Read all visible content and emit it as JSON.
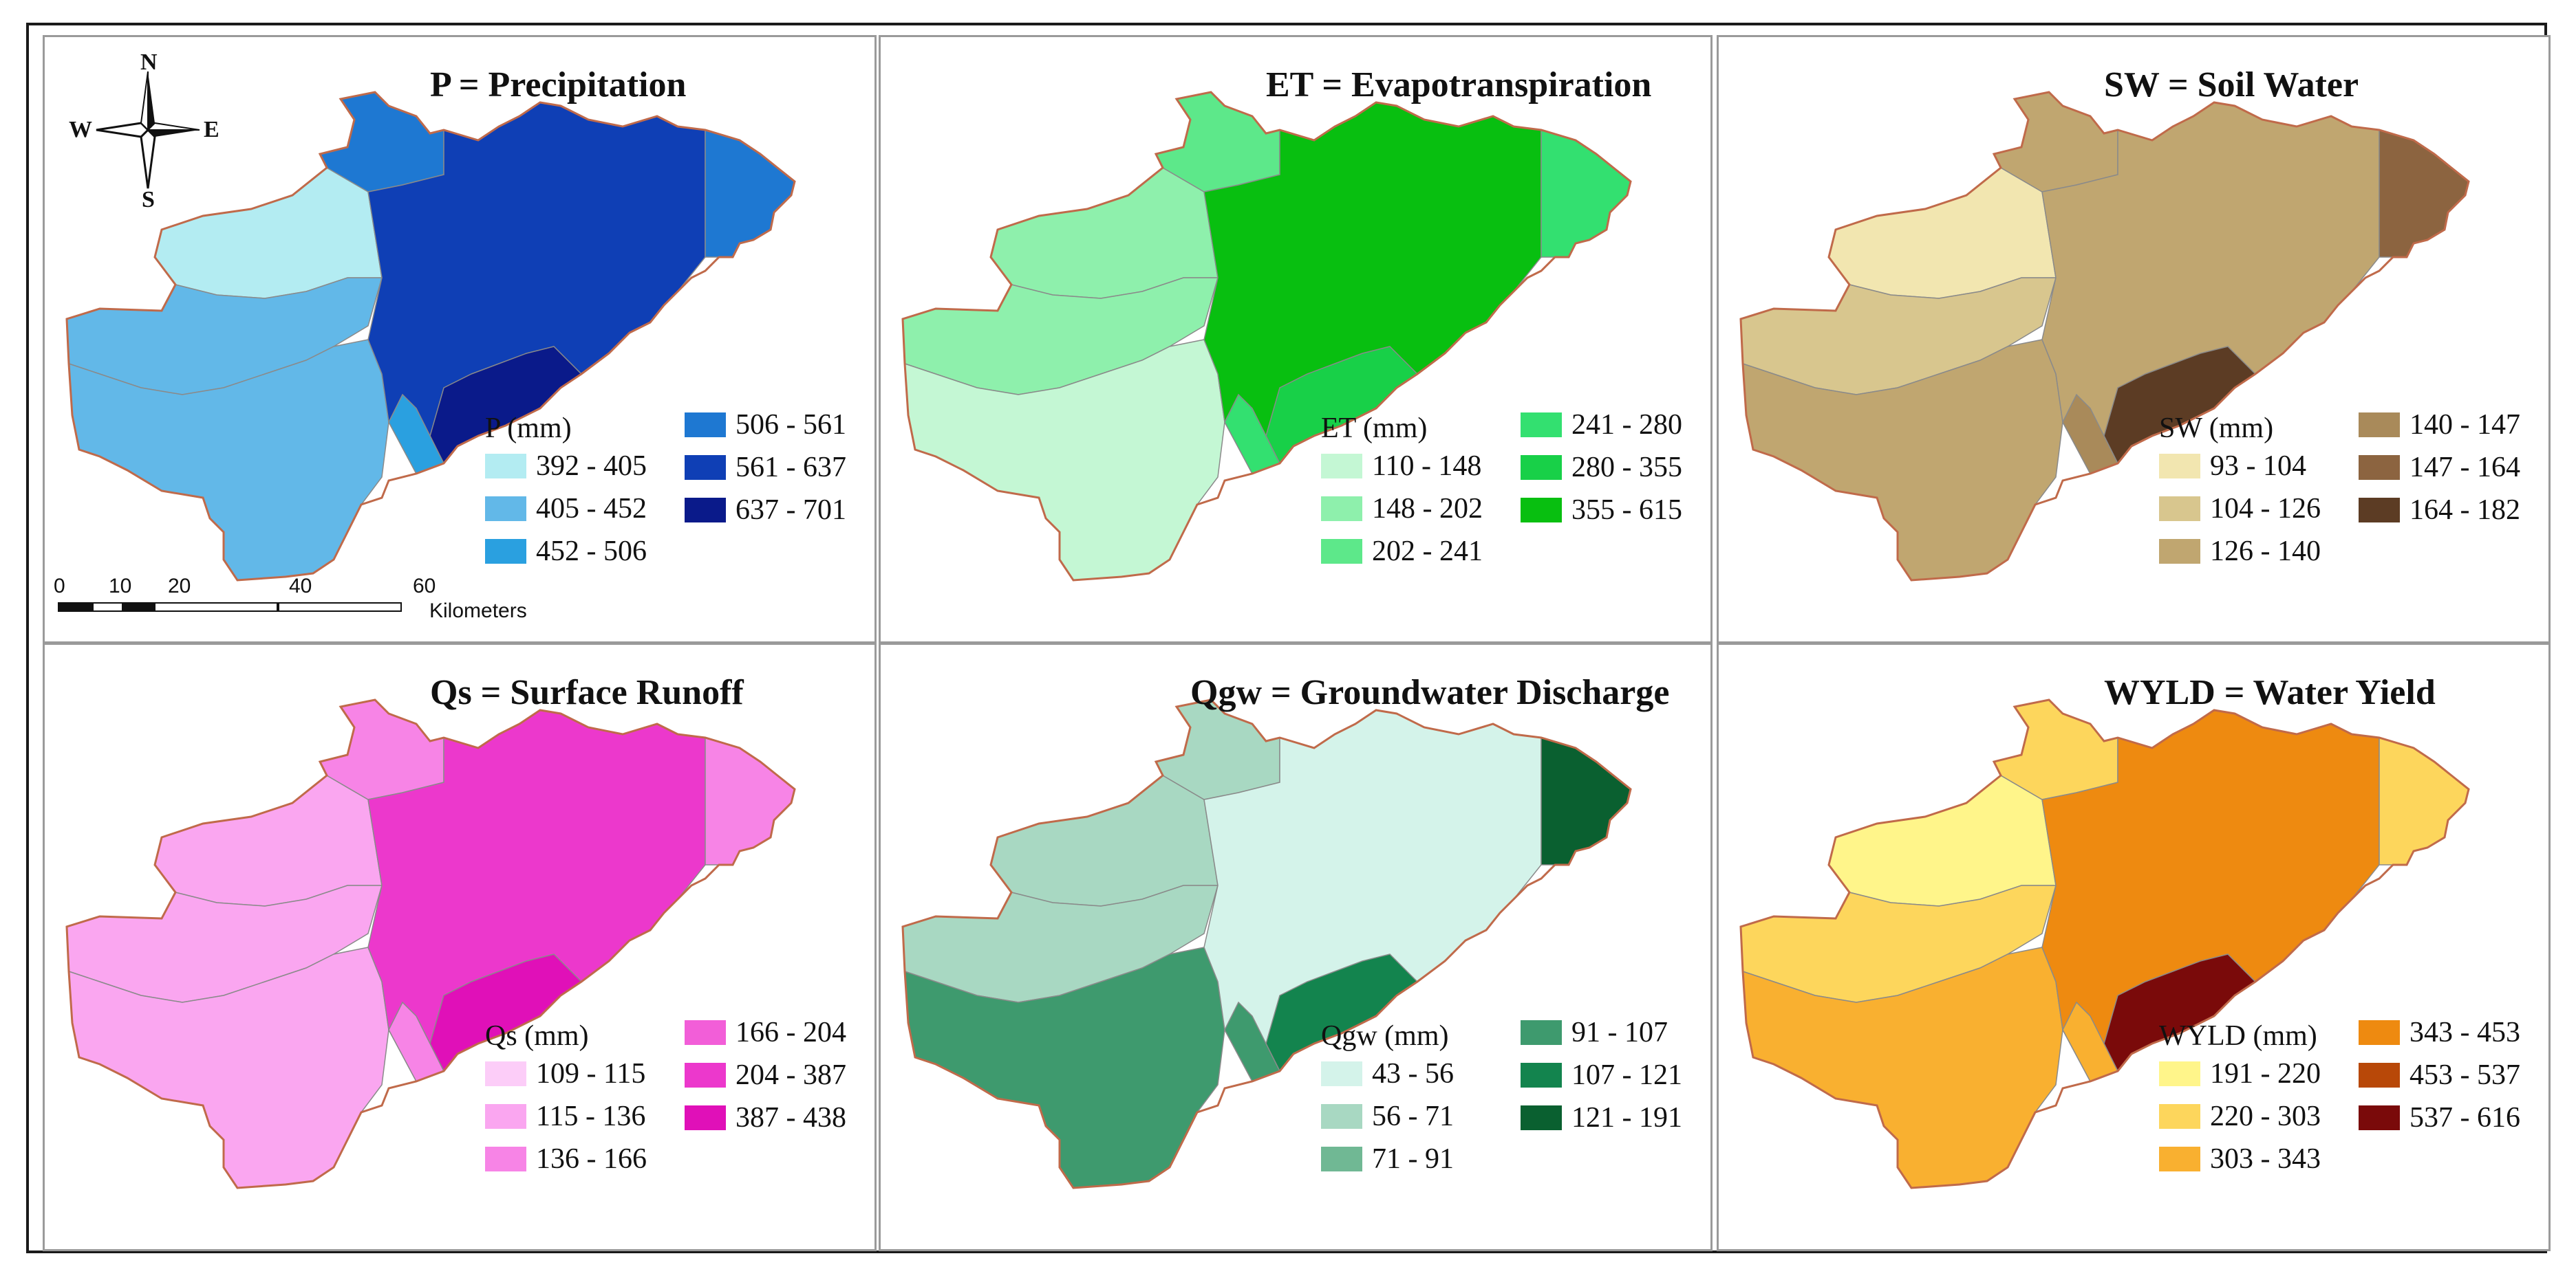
{
  "compass": {
    "n": "N",
    "s": "S",
    "e": "E",
    "w": "W"
  },
  "scale": {
    "ticks": [
      "0",
      "10",
      "20",
      "40",
      "60"
    ],
    "unit": "Kilometers"
  },
  "panels": [
    {
      "title": "P = Precipitation",
      "legend_title": "P (mm)",
      "classes": [
        {
          "label": "392 - 405",
          "color": "#b3ecf2"
        },
        {
          "label": "405 - 452",
          "color": "#62b8e8"
        },
        {
          "label": "452 - 506",
          "color": "#2aa0e0"
        },
        {
          "label": "506 - 561",
          "color": "#1e78d2"
        },
        {
          "label": "561 - 637",
          "color": "#0f3fb5"
        },
        {
          "label": "637 - 701",
          "color": "#0a1a8a"
        }
      ]
    },
    {
      "title": "ET = Evapotranspiration",
      "legend_title": "ET (mm)",
      "classes": [
        {
          "label": "110 - 148",
          "color": "#c4f7d4"
        },
        {
          "label": "148 - 202",
          "color": "#8ef0ac"
        },
        {
          "label": "202 - 241",
          "color": "#5de88a"
        },
        {
          "label": "241 - 280",
          "color": "#33e070"
        },
        {
          "label": "280 - 355",
          "color": "#18d048"
        },
        {
          "label": "355 - 615",
          "color": "#08bf10"
        }
      ]
    },
    {
      "title": "SW = Soil Water",
      "legend_title": "SW (mm)",
      "classes": [
        {
          "label": "93 - 104",
          "color": "#f2e6b0"
        },
        {
          "label": "104 - 126",
          "color": "#d8c68e"
        },
        {
          "label": "126 - 140",
          "color": "#c0a670"
        },
        {
          "label": "140 - 147",
          "color": "#a98a5a"
        },
        {
          "label": "147 - 164",
          "color": "#8c6440"
        },
        {
          "label": "164 - 182",
          "color": "#5c3c24"
        }
      ]
    },
    {
      "title": "Qs = Surface Runoff",
      "legend_title": "Qs (mm)",
      "classes": [
        {
          "label": "109 - 115",
          "color": "#fccdf8"
        },
        {
          "label": "115 - 136",
          "color": "#faa6f0"
        },
        {
          "label": "136 - 166",
          "color": "#f784e6"
        },
        {
          "label": "166 - 204",
          "color": "#f25ed8"
        },
        {
          "label": "204 - 387",
          "color": "#ec38cc"
        },
        {
          "label": "387 - 438",
          "color": "#e010b8"
        }
      ]
    },
    {
      "title": "Qgw = Groundwater Discharge",
      "legend_title": "Qgw (mm)",
      "classes": [
        {
          "label": "43 - 56",
          "color": "#d4f3ea"
        },
        {
          "label": "56 - 71",
          "color": "#a8d8c2"
        },
        {
          "label": "71 - 91",
          "color": "#70b894"
        },
        {
          "label": "91 - 107",
          "color": "#3e9a6e"
        },
        {
          "label": "107 - 121",
          "color": "#13844e"
        },
        {
          "label": "121 - 191",
          "color": "#0a6030"
        }
      ]
    },
    {
      "title": "WYLD = Water Yield",
      "legend_title": "WYLD (mm)",
      "classes": [
        {
          "label": "191 - 220",
          "color": "#fff58a"
        },
        {
          "label": "220 - 303",
          "color": "#fdd65c"
        },
        {
          "label": "303 - 343",
          "color": "#f9b030"
        },
        {
          "label": "343 - 453",
          "color": "#ee8a10"
        },
        {
          "label": "453 - 537",
          "color": "#b84808"
        },
        {
          "label": "537 - 616",
          "color": "#7a0a0a"
        }
      ]
    }
  ]
}
